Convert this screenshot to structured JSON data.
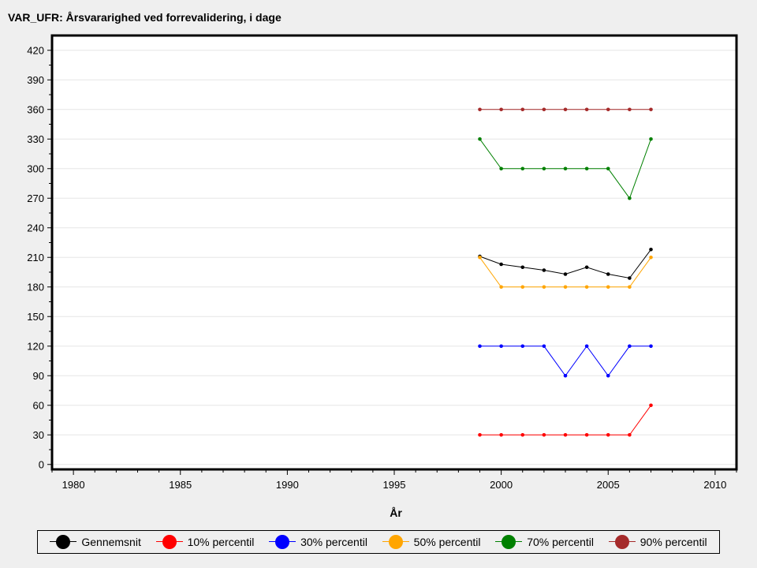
{
  "chart_data": {
    "type": "line",
    "title": "VAR_UFR: Årsvararighed ved forrevalidering, i dage",
    "xlabel": "År",
    "ylabel": "",
    "xlim": [
      1979,
      2011
    ],
    "ylim": [
      -5,
      435
    ],
    "xticks": [
      1980,
      1985,
      1990,
      1995,
      2000,
      2005,
      2010
    ],
    "yticks": [
      0,
      30,
      60,
      90,
      120,
      150,
      180,
      210,
      240,
      270,
      300,
      330,
      360,
      390,
      420
    ],
    "grid": true,
    "legend_position": "bottom",
    "x": [
      1999,
      2000,
      2001,
      2002,
      2003,
      2004,
      2005,
      2006,
      2007
    ],
    "series": [
      {
        "name": "Gennemsnit",
        "color": "#000000",
        "values": [
          211,
          203,
          200,
          197,
          193,
          200,
          193,
          189,
          218
        ]
      },
      {
        "name": "10% percentil",
        "color": "#ff0000",
        "values": [
          30,
          30,
          30,
          30,
          30,
          30,
          30,
          30,
          60
        ]
      },
      {
        "name": "30% percentil",
        "color": "#0000ff",
        "values": [
          120,
          120,
          120,
          120,
          90,
          120,
          90,
          120,
          120
        ]
      },
      {
        "name": "50% percentil",
        "color": "#ffa500",
        "values": [
          210,
          180,
          180,
          180,
          180,
          180,
          180,
          180,
          210
        ]
      },
      {
        "name": "70% percentil",
        "color": "#008000",
        "values": [
          330,
          300,
          300,
          300,
          300,
          300,
          300,
          270,
          330
        ]
      },
      {
        "name": "90% percentil",
        "color": "#a52a2a",
        "values": [
          360,
          360,
          360,
          360,
          360,
          360,
          360,
          360,
          360
        ]
      }
    ]
  }
}
